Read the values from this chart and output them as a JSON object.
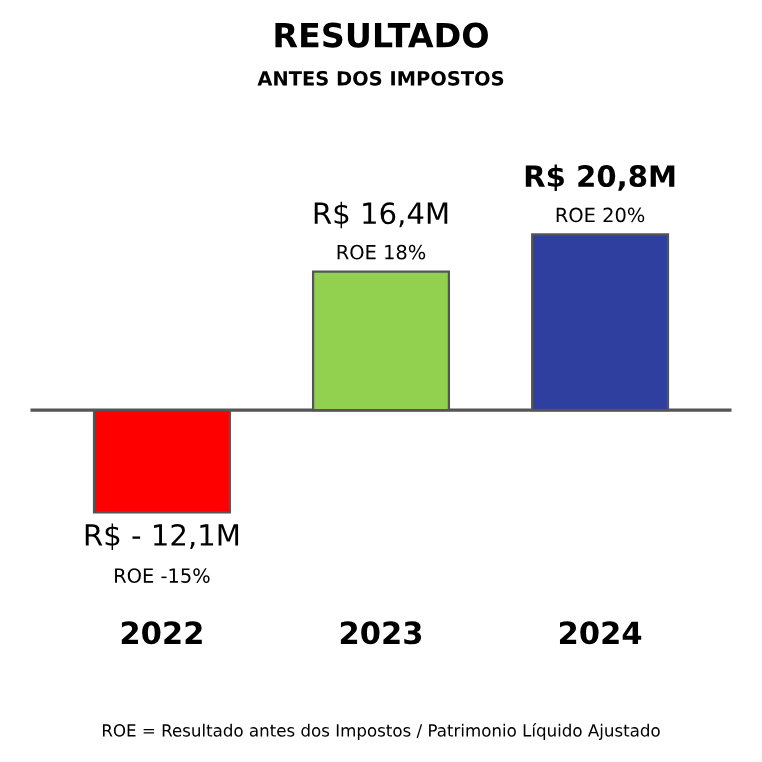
{
  "chart_data": {
    "type": "bar",
    "title": "RESULTADO",
    "subtitle": "ANTES DOS IMPOSTOS",
    "categories": [
      "2022",
      "2023",
      "2024"
    ],
    "values": [
      -12.1,
      16.4,
      20.8
    ],
    "colors": [
      "#ff0000",
      "#92d050",
      "#2f3f9f"
    ],
    "value_labels": [
      "R$ - 12,1M",
      "R$ 16,4M",
      "R$ 20,8M"
    ],
    "grid": false,
    "legend": false,
    "annotations": [
      {
        "text": "ROE -15%",
        "x": "2022",
        "y": -12.1
      },
      {
        "text": "ROE 18%",
        "x": "2023",
        "y": 16.4
      },
      {
        "text": "ROE 20%",
        "x": "2024",
        "y": 20.8
      },
      "ROE = Resultado antes dos Impostos / Patrimonio Líquido Ajustado"
    ]
  }
}
